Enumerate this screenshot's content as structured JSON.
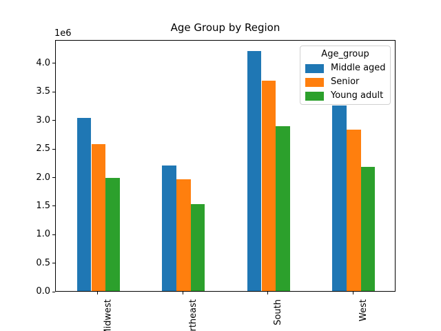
{
  "chart_data": {
    "type": "bar",
    "title": "Age Group by Region",
    "categories": [
      "Midwest",
      "Northeast",
      "South",
      "West"
    ],
    "series": [
      {
        "name": "Middle aged",
        "color": "#1f77b4",
        "values": [
          3030000,
          2200000,
          4210000,
          3250000
        ]
      },
      {
        "name": "Senior",
        "color": "#ff7f0e",
        "values": [
          2570000,
          1960000,
          3680000,
          2830000
        ]
      },
      {
        "name": "Young adult",
        "color": "#2ca02c",
        "values": [
          1980000,
          1520000,
          2890000,
          2180000
        ]
      }
    ],
    "legend": {
      "title": "Age_group",
      "position": "upper right",
      "entries": [
        "Middle aged",
        "Senior",
        "Young adult"
      ]
    },
    "x_axis": {
      "label": "",
      "tick_labels": [
        "Midwest",
        "Northeast",
        "South",
        "West"
      ],
      "tick_label_rotation": 90
    },
    "y_axis": {
      "label": "",
      "offset_label": "1e6",
      "tick_labels": [
        "0.0",
        "0.5",
        "1.0",
        "1.5",
        "2.0",
        "2.5",
        "3.0",
        "3.5",
        "4.0"
      ],
      "tick_unit": 1000000,
      "lim": [
        0,
        4410000
      ]
    },
    "grid": false,
    "bar_group_width_fraction": 0.5
  }
}
